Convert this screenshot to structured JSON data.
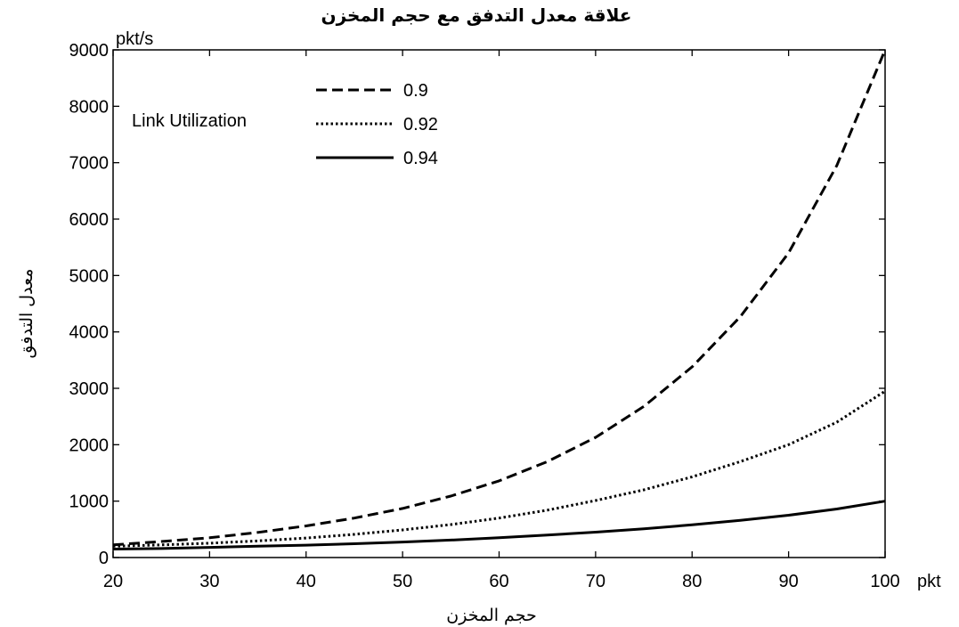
{
  "chart_data": {
    "type": "line",
    "title": "علاقة معدل التدفق مع حجم المخزن",
    "xlabel": "حجم المخزن",
    "ylabel": "معدل  التدفق",
    "x_unit": "pkt",
    "y_unit": "pkt/s",
    "xlim": [
      20,
      100
    ],
    "ylim": [
      0,
      9000
    ],
    "x_ticks": [
      20,
      30,
      40,
      50,
      60,
      70,
      80,
      90,
      100
    ],
    "y_ticks": [
      0,
      1000,
      2000,
      3000,
      4000,
      5000,
      6000,
      7000,
      8000,
      9000
    ],
    "grid": false,
    "legend_title": "Link Utilization",
    "legend_position": "top-left",
    "x": [
      20,
      25,
      30,
      35,
      40,
      45,
      50,
      55,
      60,
      65,
      70,
      75,
      80,
      85,
      90,
      95,
      100
    ],
    "series": [
      {
        "name": "0.9",
        "style": "dashed",
        "color": "#000000",
        "values": [
          225,
          285,
          350,
          445,
          560,
          700,
          870,
          1090,
          1360,
          1700,
          2130,
          2680,
          3380,
          4270,
          5400,
          6950,
          9000
        ]
      },
      {
        "name": "0.92",
        "style": "dotted",
        "color": "#000000",
        "values": [
          200,
          225,
          255,
          295,
          345,
          410,
          490,
          585,
          700,
          840,
          1010,
          1200,
          1430,
          1700,
          2000,
          2400,
          2950
        ]
      },
      {
        "name": "0.94",
        "style": "solid",
        "color": "#000000",
        "values": [
          150,
          160,
          180,
          200,
          220,
          245,
          275,
          310,
          350,
          400,
          450,
          510,
          580,
          660,
          750,
          860,
          1000
        ]
      }
    ]
  }
}
